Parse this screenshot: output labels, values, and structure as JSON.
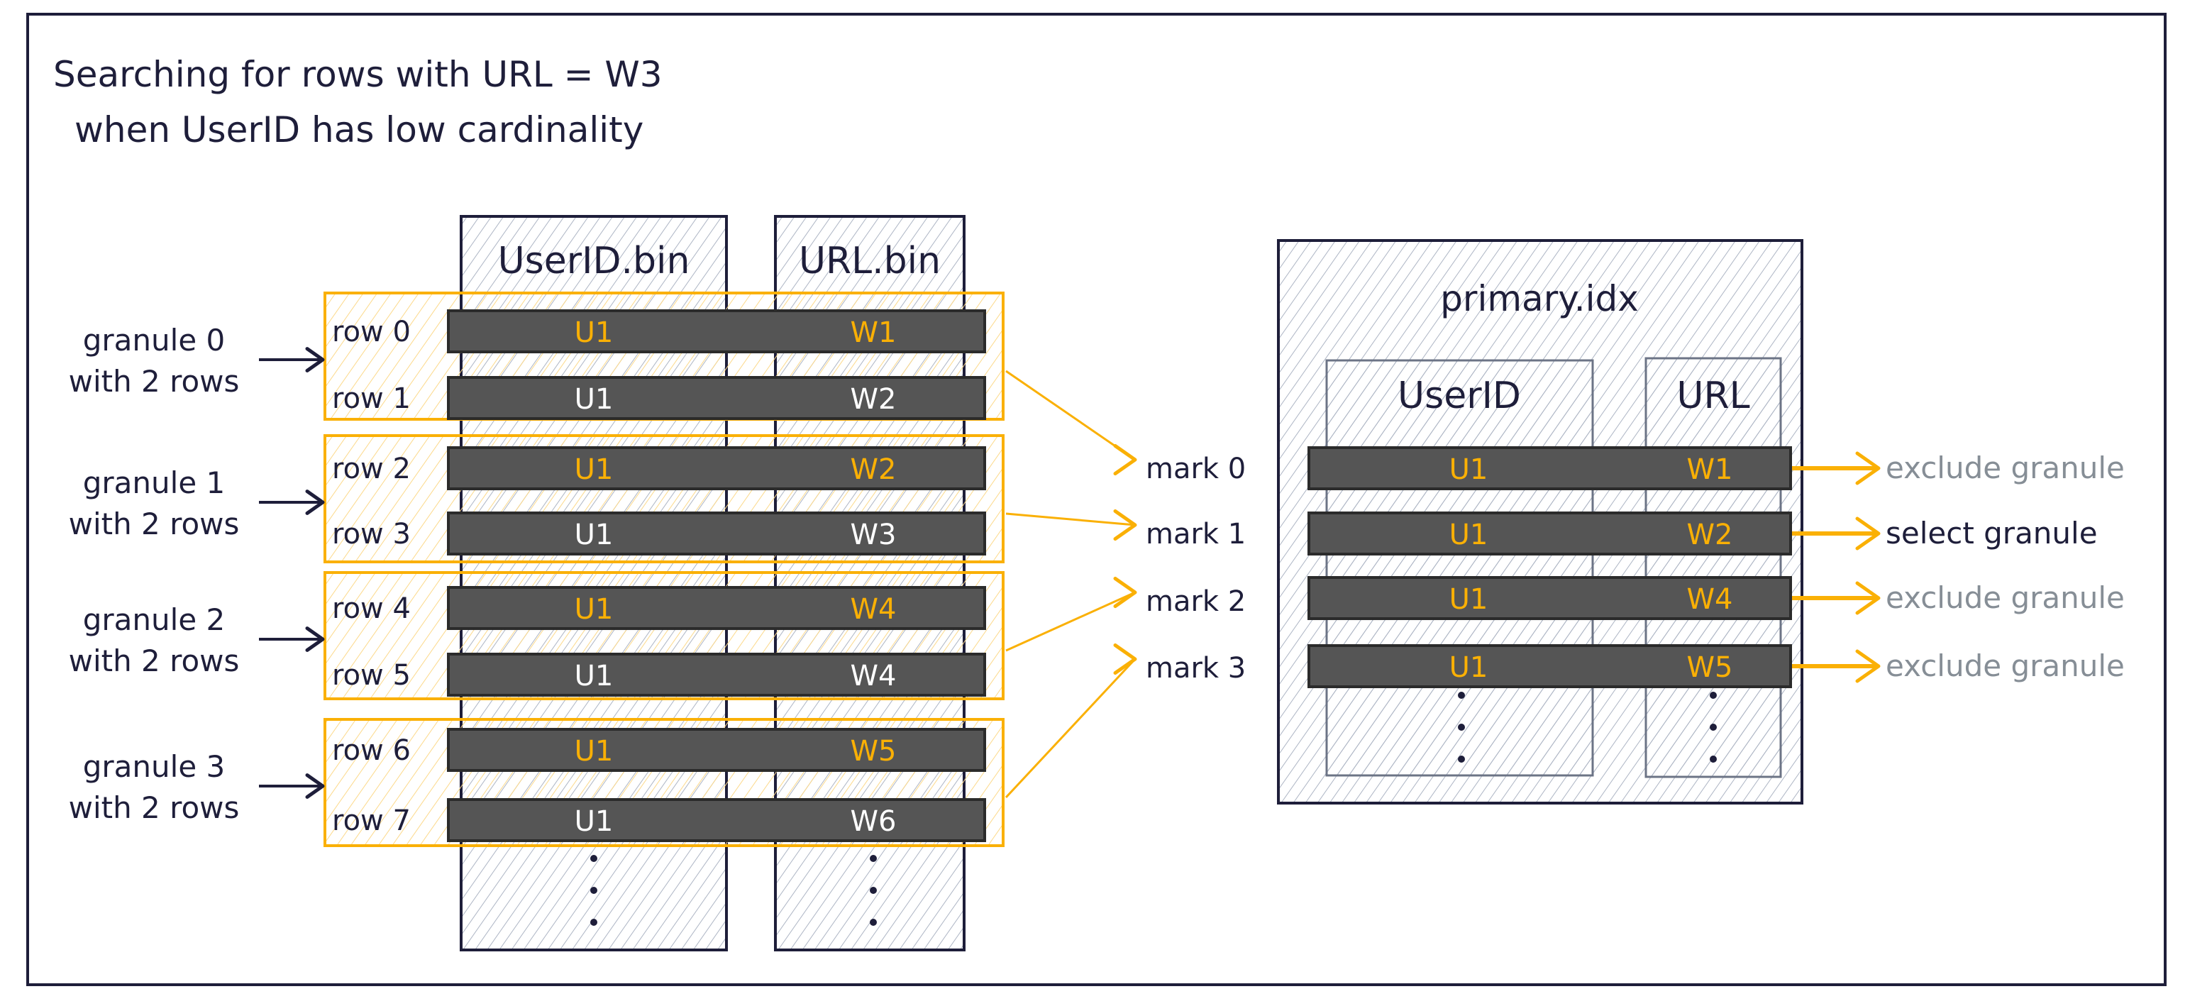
{
  "title": {
    "line1": "Searching for rows with URL = W3",
    "line2": "when UserID has low cardinality"
  },
  "columns": {
    "userid_bin": "UserID.bin",
    "url_bin": "URL.bin"
  },
  "rows": [
    {
      "label": "row 0",
      "userid": "U1",
      "url": "W1",
      "highlighted": true
    },
    {
      "label": "row 1",
      "userid": "U1",
      "url": "W2",
      "highlighted": false
    },
    {
      "label": "row 2",
      "userid": "U1",
      "url": "W2",
      "highlighted": true
    },
    {
      "label": "row 3",
      "userid": "U1",
      "url": "W3",
      "highlighted": false
    },
    {
      "label": "row 4",
      "userid": "U1",
      "url": "W4",
      "highlighted": true
    },
    {
      "label": "row 5",
      "userid": "U1",
      "url": "W4",
      "highlighted": false
    },
    {
      "label": "row 6",
      "userid": "U1",
      "url": "W5",
      "highlighted": true
    },
    {
      "label": "row 7",
      "userid": "U1",
      "url": "W6",
      "highlighted": false
    }
  ],
  "granules": [
    {
      "name": "granule 0",
      "detail": "with 2 rows"
    },
    {
      "name": "granule 1",
      "detail": "with 2 rows"
    },
    {
      "name": "granule 2",
      "detail": "with 2 rows"
    },
    {
      "name": "granule 3",
      "detail": "with 2 rows"
    }
  ],
  "marks": [
    "mark 0",
    "mark 1",
    "mark 2",
    "mark 3"
  ],
  "primary_index": {
    "title": "primary.idx",
    "userid_header": "UserID",
    "url_header": "URL",
    "entries": [
      {
        "userid": "U1",
        "url": "W1",
        "result": "exclude granule",
        "selected": false
      },
      {
        "userid": "U1",
        "url": "W2",
        "result": "select granule",
        "selected": true
      },
      {
        "userid": "U1",
        "url": "W4",
        "result": "exclude granule",
        "selected": false
      },
      {
        "userid": "U1",
        "url": "W5",
        "result": "exclude granule",
        "selected": false
      }
    ]
  },
  "colors": {
    "ink": "#1e1e3a",
    "accent": "#fab005",
    "bar": "#555555",
    "muted": "#868e96",
    "hatch": "#adb5c4"
  }
}
